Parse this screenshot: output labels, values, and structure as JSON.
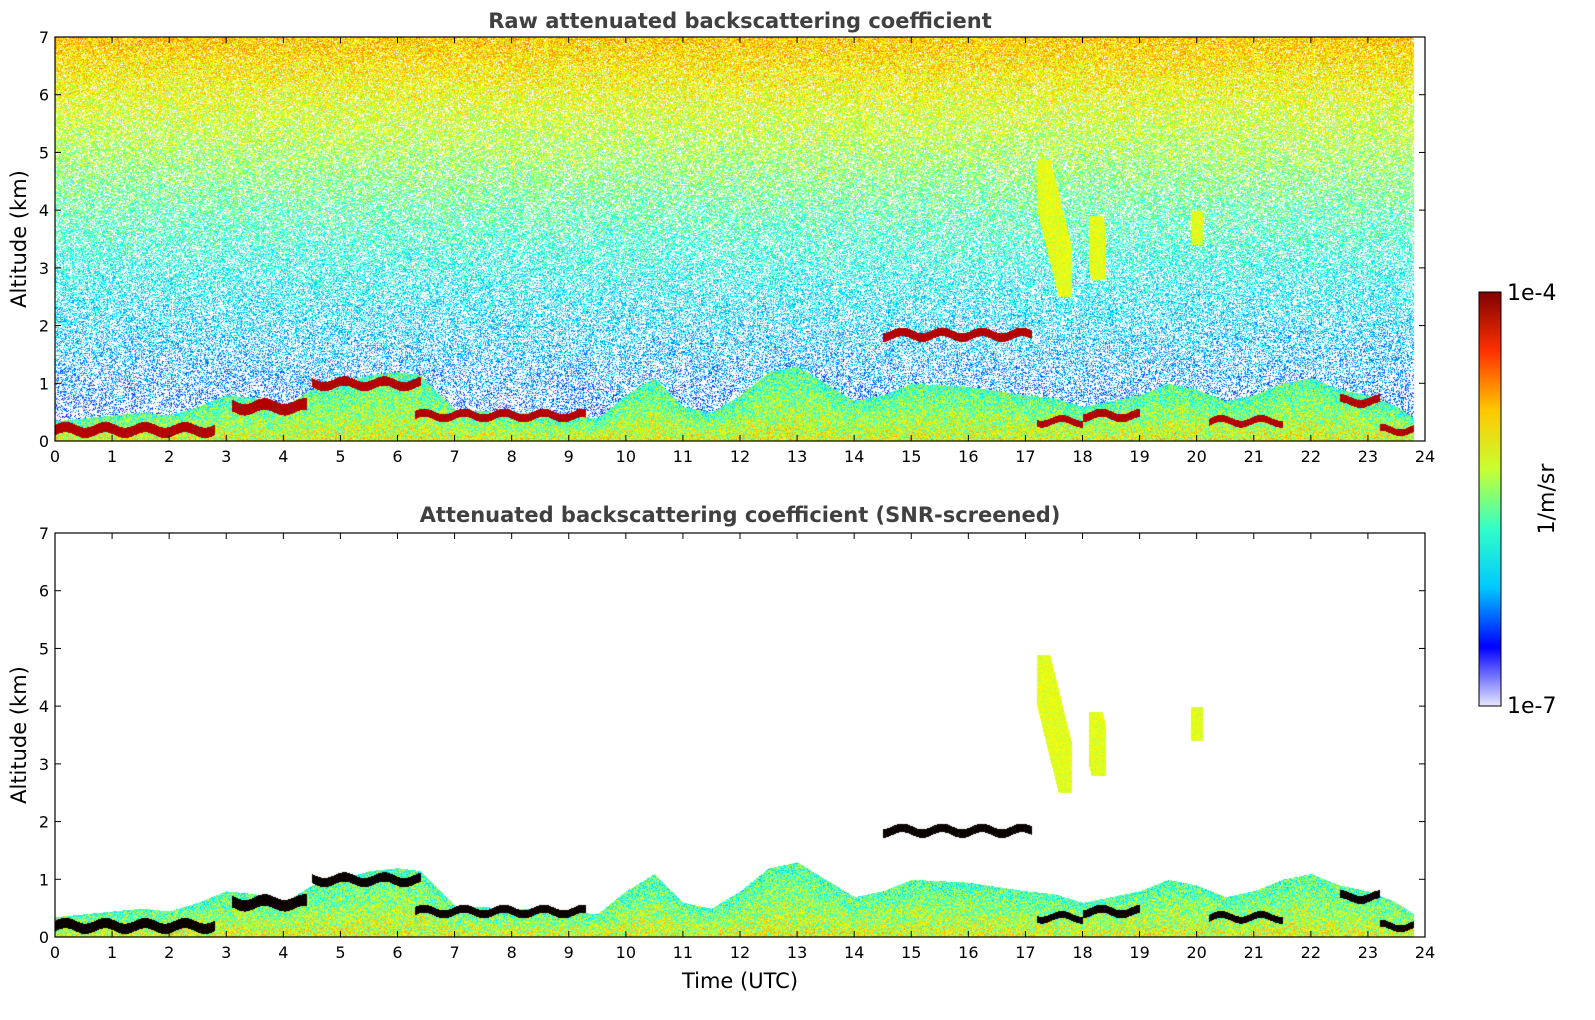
{
  "chart_data": [
    {
      "type": "heatmap",
      "title": "Raw attenuated backscattering coefficient",
      "xlabel": "",
      "ylabel": "Altitude (km)",
      "xlim": [
        0,
        24
      ],
      "ylim": [
        0,
        7
      ],
      "x_ticks": [
        0,
        1,
        2,
        3,
        4,
        5,
        6,
        7,
        8,
        9,
        10,
        11,
        12,
        13,
        14,
        15,
        16,
        17,
        18,
        19,
        20,
        21,
        22,
        23,
        24
      ],
      "y_ticks": [
        0,
        1,
        2,
        3,
        4,
        5,
        6,
        7
      ],
      "grid": false,
      "colormap": "jet",
      "screened": false
    },
    {
      "type": "heatmap",
      "title": "Attenuated backscattering coefficient (SNR-screened)",
      "xlabel": "Time (UTC)",
      "ylabel": "Altitude (km)",
      "xlim": [
        0,
        24
      ],
      "ylim": [
        0,
        7
      ],
      "x_ticks": [
        0,
        1,
        2,
        3,
        4,
        5,
        6,
        7,
        8,
        9,
        10,
        11,
        12,
        13,
        14,
        15,
        16,
        17,
        18,
        19,
        20,
        21,
        22,
        23,
        24
      ],
      "y_ticks": [
        0,
        1,
        2,
        3,
        4,
        5,
        6,
        7
      ],
      "grid": false,
      "colormap": "jet",
      "screened": true
    }
  ],
  "colorbar": {
    "max_label": "1e-4",
    "min_label": "1e-7",
    "unit_label": "1/m/sr",
    "scale": "log",
    "range": [
      1e-07,
      0.0001
    ],
    "colors": [
      "#e8e8ff",
      "#0000ff",
      "#00c8ff",
      "#32ffc8",
      "#c8ff32",
      "#ffc800",
      "#ff3200",
      "#800000"
    ]
  },
  "features": {
    "boundary_layer_top": [
      [
        0,
        0.35
      ],
      [
        0.5,
        0.4
      ],
      [
        1,
        0.45
      ],
      [
        1.5,
        0.5
      ],
      [
        2,
        0.45
      ],
      [
        2.5,
        0.6
      ],
      [
        3,
        0.8
      ],
      [
        3.5,
        0.75
      ],
      [
        4,
        0.6
      ],
      [
        4.5,
        0.9
      ],
      [
        5,
        1.0
      ],
      [
        5.5,
        1.15
      ],
      [
        6,
        1.2
      ],
      [
        6.4,
        1.15
      ],
      [
        7,
        0.55
      ],
      [
        8,
        0.5
      ],
      [
        9,
        0.45
      ],
      [
        9.5,
        0.4
      ],
      [
        10,
        0.8
      ],
      [
        10.5,
        1.1
      ],
      [
        11,
        0.6
      ],
      [
        11.5,
        0.5
      ],
      [
        12,
        0.8
      ],
      [
        12.5,
        1.2
      ],
      [
        13,
        1.3
      ],
      [
        13.5,
        1.0
      ],
      [
        14,
        0.7
      ],
      [
        14.5,
        0.8
      ],
      [
        15,
        1.0
      ],
      [
        16,
        0.95
      ],
      [
        17,
        0.8
      ],
      [
        17.5,
        0.75
      ],
      [
        18,
        0.6
      ],
      [
        18.5,
        0.7
      ],
      [
        19,
        0.8
      ],
      [
        19.5,
        1.0
      ],
      [
        20,
        0.9
      ],
      [
        20.5,
        0.7
      ],
      [
        21,
        0.8
      ],
      [
        21.5,
        1.0
      ],
      [
        22,
        1.1
      ],
      [
        22.5,
        0.9
      ],
      [
        23,
        0.8
      ],
      [
        23.5,
        0.6
      ],
      [
        23.8,
        0.4
      ]
    ],
    "cloud_layers": [
      {
        "t0": 0.0,
        "t1": 2.8,
        "alt": 0.2,
        "thick": 0.18
      },
      {
        "t0": 3.1,
        "t1": 4.4,
        "alt": 0.6,
        "thick": 0.2
      },
      {
        "t0": 4.5,
        "t1": 6.4,
        "alt": 1.0,
        "thick": 0.16
      },
      {
        "t0": 6.3,
        "t1": 9.3,
        "alt": 0.45,
        "thick": 0.14
      },
      {
        "t0": 14.5,
        "t1": 17.1,
        "alt": 1.85,
        "thick": 0.15
      },
      {
        "t0": 17.2,
        "t1": 18.0,
        "alt": 0.35,
        "thick": 0.12
      },
      {
        "t0": 18.0,
        "t1": 19.0,
        "alt": 0.45,
        "thick": 0.14
      },
      {
        "t0": 20.2,
        "t1": 21.5,
        "alt": 0.35,
        "thick": 0.12
      },
      {
        "t0": 22.5,
        "t1": 23.2,
        "alt": 0.7,
        "thick": 0.14
      },
      {
        "t0": 23.2,
        "t1": 23.8,
        "alt": 0.2,
        "thick": 0.12
      }
    ],
    "high_plumes": [
      {
        "t0": 17.2,
        "t1": 17.8,
        "alt0": 2.5,
        "alt1": 4.9
      },
      {
        "t0": 18.1,
        "t1": 18.4,
        "alt0": 2.8,
        "alt1": 3.9
      },
      {
        "t0": 19.9,
        "t1": 20.1,
        "alt0": 3.4,
        "alt1": 4.0
      }
    ]
  }
}
